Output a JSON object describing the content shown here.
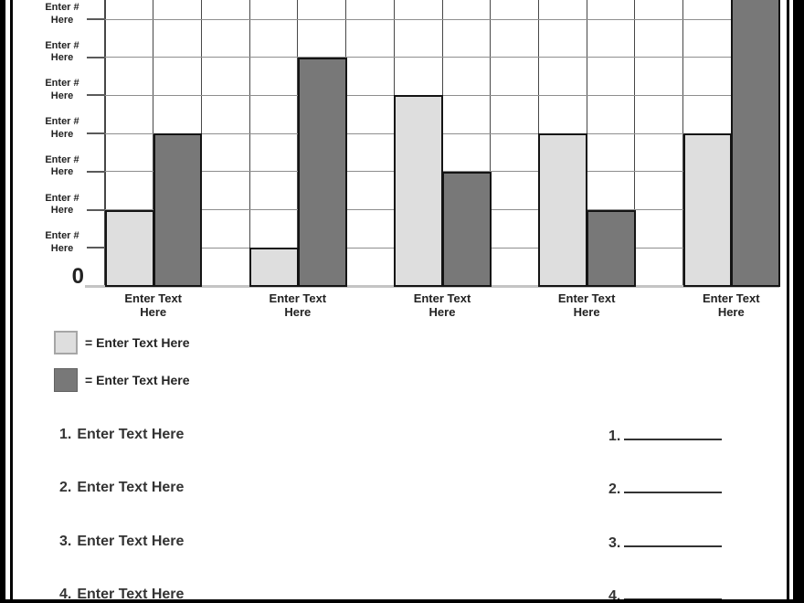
{
  "page": {
    "background": "#ffffff",
    "frame_color": "#000000"
  },
  "chart_data": {
    "type": "bar",
    "title": "",
    "categories": [
      "Enter Text Here",
      "Enter Text Here",
      "Enter Text Here",
      "Enter Text Here",
      "Enter Text Here"
    ],
    "series": [
      {
        "name": "Enter Text Here",
        "color": "#dedede",
        "values": [
          2,
          1,
          5,
          4,
          4
        ]
      },
      {
        "name": "Enter Text Here",
        "color": "#787878",
        "values": [
          4,
          6,
          3,
          2,
          8
        ]
      }
    ],
    "y_axis": {
      "tick_label_lines": [
        "Enter #",
        "Here"
      ],
      "origin_label": "0",
      "tick_count": 7
    },
    "ylim": [
      0,
      7.5
    ],
    "grid": true,
    "legend_position": "below-chart-left",
    "colors": {
      "horizontal_gridline": "#8e8e8e",
      "vertical_gridline": "#474747",
      "baseline": "#c4c4c4",
      "bar_border": "#141414"
    }
  },
  "legend": {
    "items": [
      {
        "swatch_color": "#dedede",
        "label": "= Enter Text Here"
      },
      {
        "swatch_color": "#787878",
        "label": "= Enter Text Here"
      }
    ]
  },
  "questions_left": [
    {
      "number": "1.",
      "text": "Enter Text Here"
    },
    {
      "number": "2.",
      "text": "Enter Text Here"
    },
    {
      "number": "3.",
      "text": "Enter Text Here"
    },
    {
      "number": "4.",
      "text": "Enter Text Here"
    }
  ],
  "answers_right": [
    {
      "number": "1."
    },
    {
      "number": "2."
    },
    {
      "number": "3."
    },
    {
      "number": "4."
    }
  ]
}
